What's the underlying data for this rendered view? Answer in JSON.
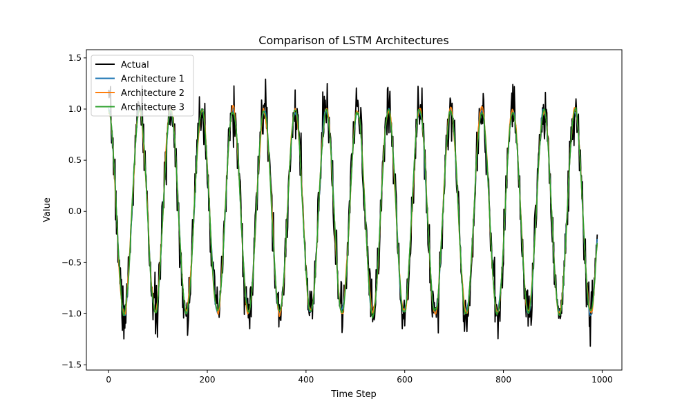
{
  "chart_data": {
    "type": "line",
    "title": "Comparison of LSTM Architectures",
    "xlabel": "Time Step",
    "ylabel": "Value",
    "xlim": [
      -45,
      1040
    ],
    "ylim": [
      -1.55,
      1.58
    ],
    "xticks": [
      0,
      200,
      400,
      600,
      800,
      1000
    ],
    "xtick_labels": [
      "0",
      "200",
      "400",
      "600",
      "800",
      "1000"
    ],
    "yticks": [
      -1.5,
      -1.0,
      -0.5,
      0.0,
      0.5,
      1.0,
      1.5
    ],
    "ytick_labels": [
      "−1.5",
      "−1.0",
      "−0.5",
      "0.0",
      "0.5",
      "1.0",
      "1.5"
    ],
    "grid": false,
    "legend_position": "top-left",
    "signal": {
      "x_start": 0,
      "x_end": 990,
      "period_steps": 63,
      "amplitude": 1.0
    },
    "series": [
      {
        "name": "Actual",
        "color": "#000000",
        "noise_sd": 0.13,
        "seed": 7,
        "smooth": 0
      },
      {
        "name": "Architecture 1",
        "color": "#1f77b4",
        "noise_sd": 0.04,
        "seed": 11,
        "smooth": 2
      },
      {
        "name": "Architecture 2",
        "color": "#ff7f0e",
        "noise_sd": 0.05,
        "seed": 23,
        "smooth": 2
      },
      {
        "name": "Architecture 3",
        "color": "#2ca02c",
        "noise_sd": 0.04,
        "seed": 37,
        "smooth": 2
      }
    ]
  }
}
